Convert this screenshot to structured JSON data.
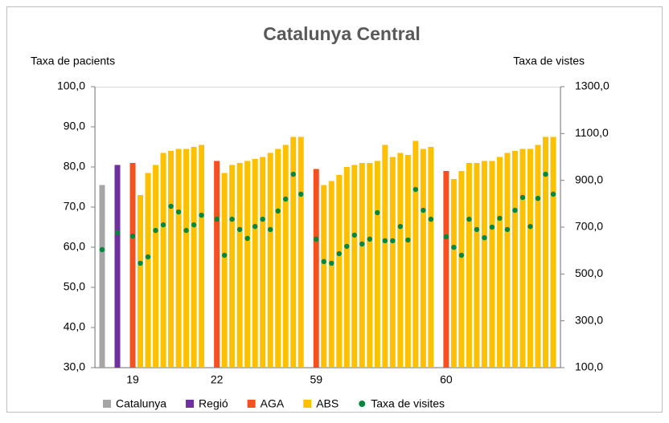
{
  "chart_data": {
    "type": "bar",
    "title": "Catalunya Central",
    "y_label": "Taxa de pacients",
    "y2_label": "Taxa de vistes",
    "categories": [
      null,
      null,
      null,
      null,
      "19",
      null,
      null,
      null,
      null,
      null,
      null,
      null,
      null,
      null,
      null,
      "22",
      null,
      null,
      null,
      null,
      null,
      null,
      null,
      null,
      null,
      null,
      null,
      null,
      "59",
      null,
      null,
      null,
      null,
      null,
      null,
      null,
      null,
      null,
      null,
      null,
      null,
      null,
      null,
      null,
      null,
      "60",
      null,
      null,
      null,
      null,
      null,
      null,
      null,
      null,
      null,
      null,
      null,
      null,
      null,
      null
    ],
    "series": [
      {
        "name": "Catalunya",
        "type": "bar",
        "color": "#a6a6a6",
        "values": [
          75.5,
          null,
          null,
          null,
          null,
          null,
          null,
          null,
          null,
          null,
          null,
          null,
          null,
          null,
          null,
          null,
          null,
          null,
          null,
          null,
          null,
          null,
          null,
          null,
          null,
          null,
          null,
          null,
          null,
          null,
          null,
          null,
          null,
          null,
          null,
          null,
          null,
          null,
          null,
          null,
          null,
          null,
          null,
          null,
          null,
          null,
          null,
          null,
          null,
          null,
          null,
          null,
          null,
          null,
          null,
          null,
          null,
          null,
          null,
          null
        ]
      },
      {
        "name": "Regió",
        "type": "bar",
        "color": "#7030a0",
        "values": [
          null,
          null,
          80.5,
          null,
          null,
          null,
          null,
          null,
          null,
          null,
          null,
          null,
          null,
          null,
          null,
          null,
          null,
          null,
          null,
          null,
          null,
          null,
          null,
          null,
          null,
          null,
          null,
          null,
          null,
          null,
          null,
          null,
          null,
          null,
          null,
          null,
          null,
          null,
          null,
          null,
          null,
          null,
          null,
          null,
          null,
          null,
          null,
          null,
          null,
          null,
          null,
          null,
          null,
          null,
          null,
          null,
          null,
          null,
          null,
          null
        ]
      },
      {
        "name": "AGA",
        "type": "bar",
        "color": "#f4511e",
        "values": [
          null,
          null,
          null,
          null,
          81,
          null,
          null,
          null,
          null,
          null,
          null,
          null,
          null,
          null,
          null,
          81.5,
          null,
          null,
          null,
          null,
          null,
          null,
          null,
          null,
          null,
          null,
          null,
          null,
          79.5,
          null,
          null,
          null,
          null,
          null,
          null,
          null,
          null,
          null,
          null,
          null,
          null,
          null,
          null,
          null,
          null,
          79,
          null,
          null,
          null,
          null,
          null,
          null,
          null,
          null,
          null,
          null,
          null,
          null,
          null,
          null
        ]
      },
      {
        "name": "ABS",
        "type": "bar",
        "color": "#ffc000",
        "values": [
          null,
          null,
          null,
          null,
          null,
          73,
          78.5,
          80.5,
          83.5,
          84,
          84.5,
          84.5,
          85,
          85.5,
          null,
          null,
          78.5,
          80.5,
          81,
          81.5,
          82,
          82.5,
          83.5,
          84.5,
          85.5,
          87.5,
          87.5,
          null,
          null,
          75.5,
          76.5,
          78,
          80,
          80.5,
          81,
          81,
          81.5,
          85.5,
          82.5,
          83.5,
          83,
          86.5,
          84.5,
          85,
          null,
          null,
          77,
          79,
          81,
          81,
          81.5,
          81.5,
          82.5,
          83.5,
          84,
          84.5,
          84.5,
          85.5,
          87.5,
          87.5
        ]
      },
      {
        "name": "Taxa de visites",
        "type": "scatter",
        "axis": "y2",
        "color": "#00873e",
        "values": [
          604,
          null,
          676,
          null,
          662,
          546,
          573,
          686,
          710,
          789,
          765,
          686,
          710,
          751,
          null,
          734,
          580,
          734,
          690,
          652,
          703,
          734,
          690,
          769,
          820,
          926,
          841,
          null,
          649,
          553,
          546,
          587,
          618,
          666,
          628,
          649,
          762,
          642,
          642,
          703,
          645,
          861,
          772,
          734,
          null,
          659,
          614,
          580,
          734,
          690,
          655,
          700,
          738,
          690,
          772,
          827,
          703,
          823,
          926,
          841
        ]
      }
    ],
    "ylim": [
      30,
      100
    ],
    "yticks": [
      {
        "value": 30,
        "label": "30,0"
      },
      {
        "value": 40,
        "label": "40,0"
      },
      {
        "value": 50,
        "label": "50,0"
      },
      {
        "value": 60,
        "label": "60,0"
      },
      {
        "value": 70,
        "label": "70,0"
      },
      {
        "value": 80,
        "label": "80,0"
      },
      {
        "value": 90,
        "label": "90,0"
      },
      {
        "value": 100,
        "label": "100,0"
      }
    ],
    "y2lim": [
      100,
      1300
    ],
    "y2ticks": [
      {
        "value": 100,
        "label": "100,0"
      },
      {
        "value": 300,
        "label": "300,0"
      },
      {
        "value": 500,
        "label": "500,0"
      },
      {
        "value": 700,
        "label": "700,0"
      },
      {
        "value": 900,
        "label": "900,0"
      },
      {
        "value": 1100,
        "label": "1100,0"
      },
      {
        "value": 1300,
        "label": "1300,0"
      }
    ],
    "legend": "bottom"
  }
}
